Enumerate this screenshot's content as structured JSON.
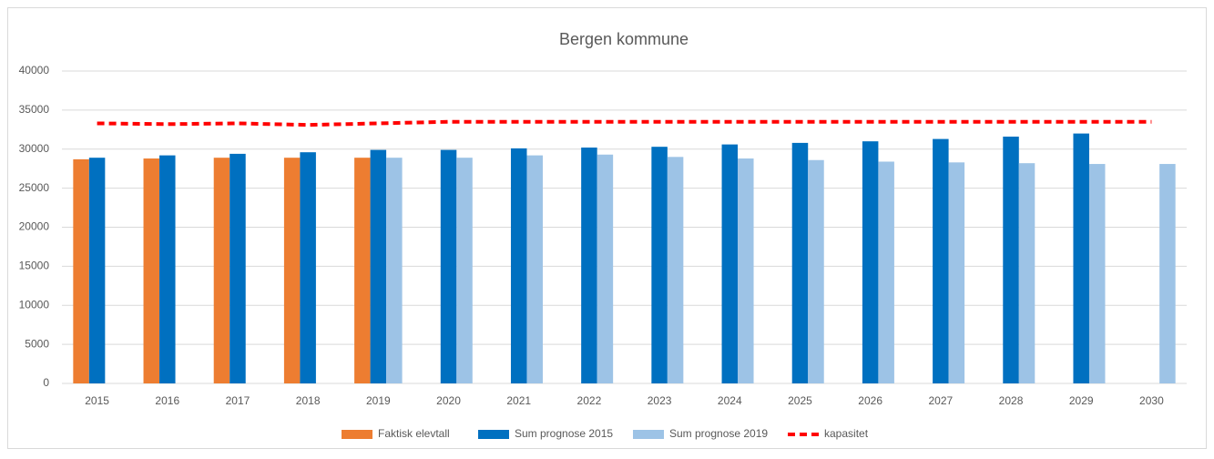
{
  "chart_data": {
    "type": "bar",
    "title": "Bergen kommune",
    "categories": [
      "2015",
      "2016",
      "2017",
      "2018",
      "2019",
      "2020",
      "2021",
      "2022",
      "2023",
      "2024",
      "2025",
      "2026",
      "2027",
      "2028",
      "2029",
      "2030"
    ],
    "series": [
      {
        "name": "Faktisk elevtall",
        "color": "#ed7d31",
        "values": [
          28700,
          28800,
          28900,
          28900,
          28900,
          null,
          null,
          null,
          null,
          null,
          null,
          null,
          null,
          null,
          null,
          null
        ]
      },
      {
        "name": "Sum prognose 2015",
        "color": "#0070c0",
        "values": [
          28900,
          29200,
          29400,
          29600,
          29900,
          29900,
          30100,
          30200,
          30300,
          30600,
          30800,
          31000,
          31300,
          31600,
          32000,
          null
        ]
      },
      {
        "name": "Sum prognose 2019",
        "color": "#9dc3e6",
        "values": [
          null,
          null,
          null,
          null,
          28900,
          28900,
          29200,
          29300,
          29000,
          28800,
          28600,
          28400,
          28300,
          28200,
          28100,
          28100
        ]
      },
      {
        "name": "kapasitet",
        "color": "#ff0000",
        "type": "line",
        "dashed": true,
        "values": [
          33300,
          33200,
          33300,
          33100,
          33300,
          33500,
          33500,
          33500,
          33500,
          33500,
          33500,
          33500,
          33500,
          33500,
          33500,
          33500
        ]
      }
    ],
    "ylim": [
      0,
      40000
    ],
    "yticks": [
      0,
      5000,
      10000,
      15000,
      20000,
      25000,
      30000,
      35000,
      40000
    ],
    "grid": true,
    "legend": "bottom"
  }
}
